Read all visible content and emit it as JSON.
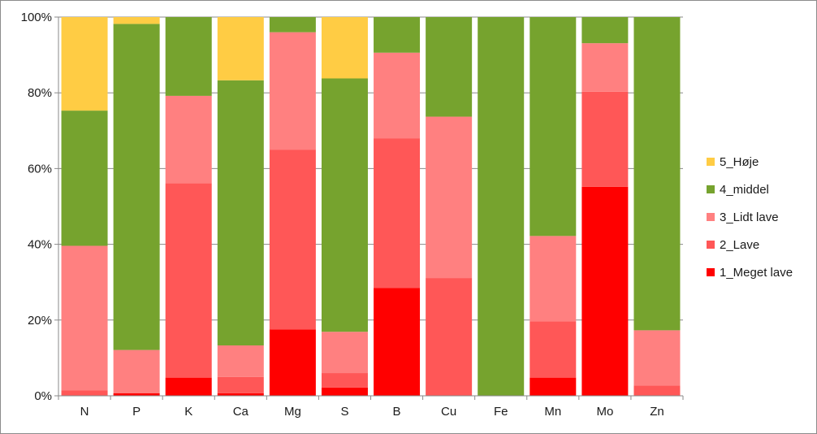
{
  "chart_data": {
    "type": "bar",
    "stacked": true,
    "normalized": true,
    "title": "",
    "xlabel": "",
    "ylabel": "",
    "ylim": [
      0,
      100
    ],
    "yticks": [
      "0%",
      "20%",
      "40%",
      "60%",
      "80%",
      "100%"
    ],
    "categories": [
      "N",
      "P",
      "K",
      "Ca",
      "Mg",
      "S",
      "B",
      "Cu",
      "Fe",
      "Mn",
      "Mo",
      "Zn"
    ],
    "series": [
      {
        "name": "1_Meget lave",
        "color": "#ff0000",
        "values": [
          0,
          0.7,
          4.8,
          0.7,
          17.5,
          2.2,
          28.5,
          0,
          0,
          4.8,
          55.2,
          0
        ]
      },
      {
        "name": "2_Lave",
        "color": "#ff5757",
        "values": [
          1.4,
          0,
          51.3,
          4.3,
          47.5,
          3.8,
          39.5,
          31.1,
          0,
          14.9,
          25.1,
          2.7
        ]
      },
      {
        "name": "3_Lidt lave",
        "color": "#ff8080",
        "values": [
          38.2,
          11.4,
          23.1,
          8.3,
          31.0,
          10.9,
          22.6,
          42.6,
          0,
          22.5,
          12.8,
          14.6
        ]
      },
      {
        "name": "4_middel",
        "color": "#76a32e",
        "values": [
          35.7,
          86.1,
          20.8,
          70.0,
          4.0,
          66.9,
          9.4,
          26.3,
          100,
          57.8,
          6.9,
          82.7
        ]
      },
      {
        "name": "5_Høje",
        "color": "#ffcc44",
        "values": [
          24.7,
          1.8,
          0,
          16.7,
          0,
          16.2,
          0,
          0,
          0,
          0,
          0,
          0
        ]
      }
    ],
    "legend_position": "right",
    "grid": true
  }
}
